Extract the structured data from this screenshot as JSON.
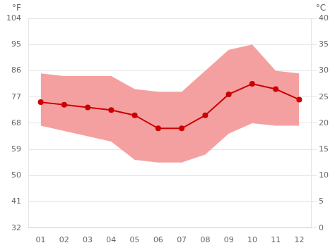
{
  "chart_data": {
    "type": "line",
    "x": [
      1,
      2,
      3,
      4,
      5,
      6,
      7,
      8,
      9,
      10,
      11,
      12
    ],
    "xlim": [
      0.5,
      12.5
    ],
    "xticks": [
      {
        "value": 1,
        "label": "01"
      },
      {
        "value": 2,
        "label": "02"
      },
      {
        "value": 3,
        "label": "03"
      },
      {
        "value": 4,
        "label": "04"
      },
      {
        "value": 5,
        "label": "05"
      },
      {
        "value": 6,
        "label": "06"
      },
      {
        "value": 7,
        "label": "07"
      },
      {
        "value": 8,
        "label": "08"
      },
      {
        "value": 9,
        "label": "09"
      },
      {
        "value": 10,
        "label": "10"
      },
      {
        "value": 11,
        "label": "11"
      },
      {
        "value": 12,
        "label": "12"
      }
    ],
    "ylabel": "°C",
    "ylim": [
      0,
      40
    ],
    "yticks": [
      0,
      5,
      10,
      15,
      20,
      25,
      30,
      35,
      40
    ],
    "y2label": "°F",
    "y2lim": [
      32,
      104
    ],
    "y2ticks": [
      32,
      41,
      50,
      59,
      68,
      77,
      86,
      95,
      104
    ],
    "grid": "y",
    "series": [
      {
        "type": "area",
        "color": "#f5a0a0",
        "values": [
          29.5,
          29.0,
          29.0,
          29.0,
          26.5,
          26.0,
          26.0,
          30.0,
          34.0,
          35.0,
          30.0,
          29.5
        ]
      },
      {
        "type": "area",
        "color": "#f5a0a0",
        "values": [
          19.5,
          18.5,
          17.5,
          16.5,
          13.0,
          12.5,
          12.5,
          14.0,
          18.0,
          20.0,
          19.5,
          19.5
        ]
      },
      {
        "type": "line",
        "color": "#cc0000",
        "marker": "circle",
        "values": [
          24.0,
          23.5,
          23.0,
          22.5,
          21.5,
          19.0,
          19.0,
          21.5,
          25.5,
          27.5,
          26.5,
          24.5
        ]
      }
    ]
  }
}
